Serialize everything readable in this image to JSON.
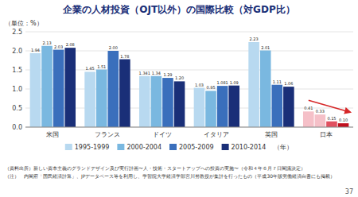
{
  "chart_data": {
    "type": "bar",
    "title": "企業の人材投資（OJT以外）の国際比較（対GDP比）",
    "ylabel": "（単位：%）",
    "categories": [
      "米国",
      "フランス",
      "ドイツ",
      "イタリア",
      "英国",
      "日本"
    ],
    "series": [
      {
        "name": "1995-1999",
        "color": "#b8d9f0",
        "colors": [
          "#b8d9f0",
          "#b8d9f0",
          "#b8d9f0",
          "#b8d9f0",
          "#b8d9f0",
          "#f5c0c8"
        ],
        "values": [
          1.94,
          1.45,
          1.341,
          1.03,
          2.23,
          0.41
        ],
        "value_labels": [
          "1.94",
          "1.45",
          "1.341",
          "1.03",
          "2.23",
          "0.41"
        ]
      },
      {
        "name": "2000-2004",
        "color": "#7ab8e0",
        "colors": [
          "#7ab8e0",
          "#7ab8e0",
          "#7ab8e0",
          "#7ab8e0",
          "#7ab8e0",
          "#f5c0c8"
        ],
        "values": [
          2.13,
          1.51,
          1.34,
          0.95,
          2.01,
          0.33
        ],
        "value_labels": [
          "2.13",
          "1.51",
          "1.34",
          "0.95",
          "2.01",
          "0.33"
        ]
      },
      {
        "name": "2005-2009",
        "color": "#3a6fbc",
        "colors": [
          "#3a6fbc",
          "#3a6fbc",
          "#3a6fbc",
          "#3a6fbc",
          "#3a6fbc",
          "#e05060"
        ],
        "values": [
          2.03,
          2.0,
          1.29,
          1.081,
          1.11,
          0.15
        ],
        "value_labels": [
          "2.03",
          "2.00",
          "1.29",
          "1.081",
          "1.11",
          "0.15"
        ]
      },
      {
        "name": "2010-2014",
        "color": "#1a2f78",
        "colors": [
          "#1a2f78",
          "#1a2f78",
          "#1a2f78",
          "#1a2f78",
          "#1a2f78",
          "#c0101e"
        ],
        "values": [
          2.08,
          1.78,
          1.2,
          1.09,
          1.06,
          0.1
        ],
        "value_labels": [
          "2.08",
          "1.78",
          "1.20",
          "1.09",
          "1.06",
          "0.10"
        ]
      }
    ],
    "ylim": [
      0,
      2.5
    ],
    "yticks": [
      {
        "value": 0,
        "label": "0.0"
      },
      {
        "value": 0.5,
        "label": "0.5"
      },
      {
        "value": 1,
        "label": "1.0"
      },
      {
        "value": 1.5,
        "label": "1.5"
      },
      {
        "value": 2,
        "label": "2.0"
      },
      {
        "value": 2.5,
        "label": "2.5"
      }
    ],
    "grid": true,
    "legend": "bottom",
    "data_labels": true,
    "annotations": [
      "（年）",
      "（資料出所）新しい資本主義のグランドデザイン及び実行計画〜人・技術・スタートアップへの投資の実施〜（令和４年６月７日閣議決定）",
      "（注）　内閣府「国民経済計算」、JPデータベース等を利用し、学習院大学経済学部宮川努教授が集計を行ったもの（平成30年版労働経済白書にも掲載）",
      "37"
    ]
  }
}
